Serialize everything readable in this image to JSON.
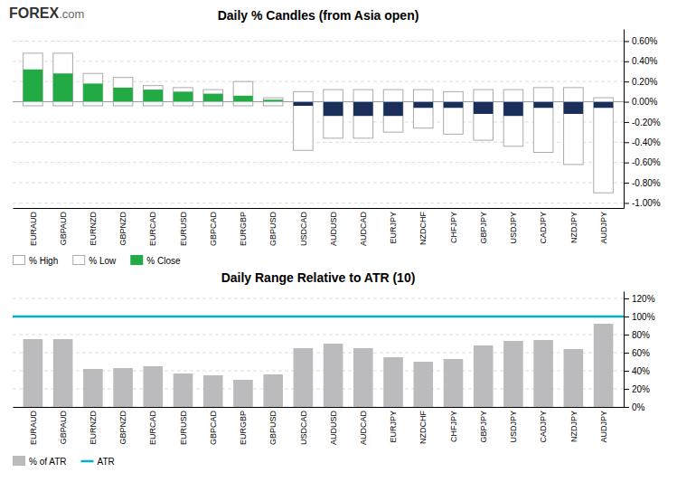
{
  "chart_data": [
    {
      "type": "candlestick",
      "title": "Daily % Candles (from Asia open)",
      "annotations": [
        {
          "text": "FOREX"
        },
        {
          "text": ".com"
        }
      ],
      "categories": [
        "EURAUD",
        "GBPAUD",
        "EURNZD",
        "GBPNZD",
        "EURCAD",
        "EURUSD",
        "GBPCAD",
        "EURGBP",
        "GBPUSD",
        "USDCAD",
        "AUDUSD",
        "AUDCAD",
        "EURJPY",
        "NZDCHF",
        "CHFJPY",
        "GBPJPY",
        "USDJPY",
        "CADJPY",
        "NZDJPY",
        "AUDJPY"
      ],
      "series": [
        {
          "name": "% High",
          "values": [
            0.48,
            0.48,
            0.28,
            0.24,
            0.16,
            0.14,
            0.12,
            0.2,
            0.04,
            0.1,
            0.12,
            0.12,
            0.12,
            0.12,
            0.1,
            0.12,
            0.12,
            0.14,
            0.14,
            0.04
          ]
        },
        {
          "name": "% Low",
          "values": [
            -0.04,
            -0.04,
            -0.04,
            -0.04,
            -0.04,
            -0.04,
            -0.04,
            -0.04,
            -0.04,
            -0.48,
            -0.36,
            -0.36,
            -0.3,
            -0.26,
            -0.32,
            -0.38,
            -0.44,
            -0.5,
            -0.62,
            -0.9
          ]
        },
        {
          "name": "% Close",
          "color": "#22aa44",
          "colors": [
            "#22aa44",
            "#22aa44",
            "#22aa44",
            "#22aa44",
            "#22aa44",
            "#22aa44",
            "#22aa44",
            "#22aa44",
            "#22aa44",
            "#1a2e5a",
            "#1a2e5a",
            "#1a2e5a",
            "#1a2e5a",
            "#1a2e5a",
            "#1a2e5a",
            "#1a2e5a",
            "#1a2e5a",
            "#1a2e5a",
            "#1a2e5a",
            "#1a2e5a"
          ],
          "values": [
            0.32,
            0.28,
            0.18,
            0.14,
            0.12,
            0.1,
            0.08,
            0.06,
            0.02,
            -0.04,
            -0.14,
            -0.14,
            -0.14,
            -0.06,
            -0.06,
            -0.12,
            -0.14,
            -0.06,
            -0.12,
            -0.06
          ]
        }
      ],
      "ylim": [
        -1.05,
        0.72
      ],
      "yticks": [
        {
          "value": 0.6,
          "label": "0.60%"
        },
        {
          "value": 0.4,
          "label": "0.40%"
        },
        {
          "value": 0.2,
          "label": "0.20%"
        },
        {
          "value": 0.0,
          "label": "0.00%"
        },
        {
          "value": -0.2,
          "label": "-0.20%"
        },
        {
          "value": -0.4,
          "label": "-0.40%"
        },
        {
          "value": -0.6,
          "label": "-0.60%"
        },
        {
          "value": -0.8,
          "label": "-0.80%"
        },
        {
          "value": -1.0,
          "label": "-1.00%"
        }
      ],
      "grid": true,
      "legend": "bottom"
    },
    {
      "type": "bar",
      "title": "Daily Range Relative to ATR (10)",
      "categories": [
        "EURAUD",
        "GBPAUD",
        "EURNZD",
        "GBPNZD",
        "EURCAD",
        "EURUSD",
        "GBPCAD",
        "EURGBP",
        "GBPUSD",
        "USDCAD",
        "AUDUSD",
        "AUDCAD",
        "EURJPY",
        "NZDCHF",
        "CHFJPY",
        "GBPJPY",
        "USDJPY",
        "CADJPY",
        "NZDJPY",
        "AUDJPY"
      ],
      "series": [
        {
          "name": "% of ATR",
          "color": "#bbbbbe",
          "values": [
            75,
            75,
            42,
            43,
            45,
            37,
            35,
            30,
            36,
            65,
            70,
            65,
            55,
            50,
            53,
            68,
            73,
            74,
            64,
            92
          ]
        }
      ],
      "reference_line": {
        "name": "ATR",
        "value": 100,
        "color": "#00b0cc"
      },
      "ylim": [
        0,
        128
      ],
      "yticks": [
        {
          "value": 0,
          "label": "0%"
        },
        {
          "value": 20,
          "label": "20%"
        },
        {
          "value": 40,
          "label": "40%"
        },
        {
          "value": 60,
          "label": "60%"
        },
        {
          "value": 80,
          "label": "80%"
        },
        {
          "value": 100,
          "label": "100%"
        },
        {
          "value": 120,
          "label": "120%"
        }
      ],
      "grid": true,
      "legend": "bottom"
    }
  ]
}
